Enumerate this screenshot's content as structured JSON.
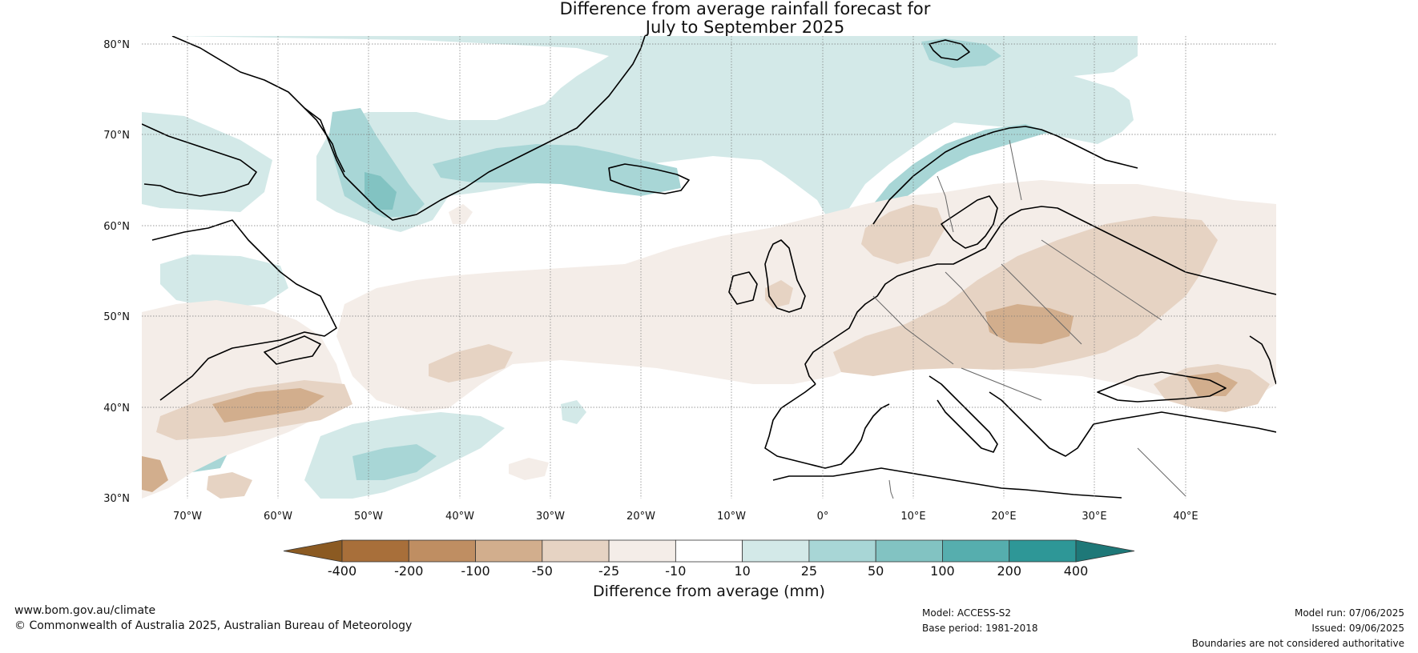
{
  "title": {
    "line1": "Difference from average rainfall forecast for",
    "line2": "July to September 2025"
  },
  "map": {
    "lat_labels": [
      "80°N",
      "70°N",
      "60°N",
      "50°N",
      "40°N",
      "30°N"
    ],
    "lon_labels": [
      "70°W",
      "60°W",
      "50°W",
      "40°W",
      "30°W",
      "20°W",
      "10°W",
      "0°",
      "10°E",
      "20°E",
      "30°E",
      "40°E"
    ],
    "extent": {
      "lon": [
        -75,
        50
      ],
      "lat": [
        30,
        81
      ]
    }
  },
  "colorbar": {
    "title": "Difference from average (mm)",
    "ticks": [
      "-400",
      "-200",
      "-100",
      "-50",
      "-25",
      "-10",
      "10",
      "25",
      "50",
      "100",
      "200",
      "400"
    ],
    "colors": [
      "#8b5a22",
      "#a86f3a",
      "#bf8e62",
      "#d2ae8d",
      "#e6d3c3",
      "#f4ede8",
      "#ffffff",
      "#d3e9e8",
      "#a8d6d6",
      "#82c3c2",
      "#56aeae",
      "#2e9797",
      "#1e7878"
    ]
  },
  "footer": {
    "website": "www.bom.gov.au/climate",
    "copyright": "© Commonwealth of Australia 2025, Australian Bureau of Meteorology",
    "model": "Model: ACCESS-S2",
    "base_period": "Base period: 1981-2018",
    "model_run": "Model run: 07/06/2025",
    "issued": "Issued: 09/06/2025",
    "disclaimer": "Boundaries are not considered authoritative"
  }
}
